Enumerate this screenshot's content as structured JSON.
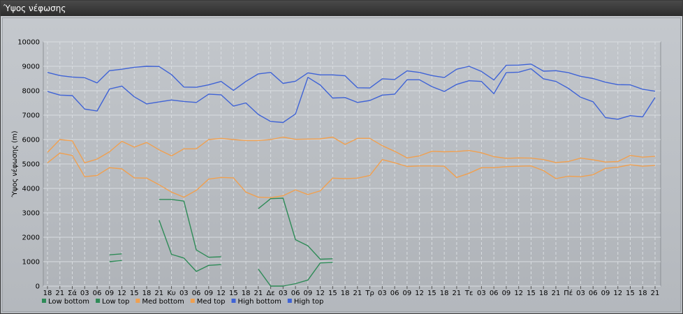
{
  "window": {
    "title": "Ύψος νέφωσης"
  },
  "colors": {
    "low": "#2e8b57",
    "med": "#f0a050",
    "high": "#3f63d6",
    "grid": "#d9dde1",
    "plot_bg": "#b9bdc2"
  },
  "chart_data": {
    "type": "line",
    "title": "",
    "xlabel": "",
    "ylabel": "Ύψος νέφωσης (m)",
    "ylim": [
      0,
      10000
    ],
    "yticks": [
      0,
      1000,
      2000,
      3000,
      4000,
      5000,
      6000,
      7000,
      8000,
      9000,
      10000
    ],
    "grid": true,
    "legend_position": "bottom-left",
    "categories": [
      "18",
      "21",
      "Σά",
      "03",
      "06",
      "09",
      "12",
      "15",
      "18",
      "21",
      "Κυ",
      "03",
      "06",
      "09",
      "12",
      "15",
      "18",
      "21",
      "Δε",
      "03",
      "06",
      "09",
      "12",
      "15",
      "18",
      "21",
      "Τρ",
      "03",
      "06",
      "09",
      "12",
      "15",
      "18",
      "21",
      "Τε",
      "03",
      "06",
      "09",
      "12",
      "15",
      "18",
      "21",
      "Πέ",
      "03",
      "06",
      "09",
      "12",
      "15",
      "18",
      "21"
    ],
    "series": [
      {
        "name": "Low bottom",
        "color_key": "low",
        "values": [
          null,
          null,
          null,
          null,
          null,
          1000,
          1050,
          null,
          null,
          2700,
          1300,
          1150,
          600,
          850,
          880,
          null,
          null,
          700,
          0,
          0,
          100,
          250,
          950,
          970,
          null,
          null,
          null,
          null,
          null,
          null,
          null,
          null,
          null,
          null,
          null,
          null,
          null,
          null,
          null,
          null,
          null,
          null,
          null,
          null,
          null,
          null,
          null,
          null,
          null,
          null
        ]
      },
      {
        "name": "Low top",
        "color_key": "low",
        "values": [
          null,
          null,
          null,
          null,
          null,
          1280,
          1320,
          null,
          null,
          3550,
          3550,
          3480,
          1480,
          1180,
          1200,
          null,
          null,
          3170,
          3580,
          3600,
          1900,
          1650,
          1100,
          1120,
          null,
          null,
          null,
          null,
          null,
          null,
          null,
          null,
          null,
          null,
          null,
          null,
          null,
          null,
          null,
          null,
          null,
          null,
          null,
          null,
          null,
          null,
          null,
          null,
          null,
          null
        ]
      },
      {
        "name": "Med bottom",
        "color_key": "med",
        "values": [
          5050,
          5450,
          5350,
          4480,
          4530,
          4850,
          4800,
          4430,
          4420,
          4150,
          3850,
          3640,
          3920,
          4380,
          4450,
          4430,
          3850,
          3640,
          3620,
          3700,
          3940,
          3750,
          3900,
          4420,
          4400,
          4420,
          4530,
          5180,
          5050,
          4900,
          4920,
          4920,
          4910,
          4450,
          4620,
          4850,
          4850,
          4890,
          4910,
          4920,
          4730,
          4400,
          4500,
          4480,
          4560,
          4820,
          4870,
          4970,
          4910,
          4940
        ]
      },
      {
        "name": "Med top",
        "color_key": "med",
        "values": [
          5480,
          6000,
          5950,
          5050,
          5200,
          5500,
          5930,
          5690,
          5880,
          5580,
          5330,
          5620,
          5620,
          6000,
          6050,
          6000,
          5960,
          5960,
          6000,
          6100,
          6010,
          6020,
          6030,
          6100,
          5800,
          6050,
          6050,
          5750,
          5520,
          5250,
          5330,
          5520,
          5500,
          5510,
          5550,
          5460,
          5300,
          5230,
          5250,
          5240,
          5180,
          5060,
          5100,
          5240,
          5170,
          5080,
          5100,
          5350,
          5280,
          5310
        ]
      },
      {
        "name": "High bottom",
        "color_key": "high",
        "values": [
          7970,
          7820,
          7800,
          7250,
          7170,
          8070,
          8190,
          7750,
          7460,
          7540,
          7620,
          7560,
          7520,
          7860,
          7830,
          7370,
          7500,
          7030,
          6740,
          6700,
          7050,
          8550,
          8230,
          7700,
          7720,
          7520,
          7600,
          7820,
          7860,
          8450,
          8450,
          8170,
          7970,
          8260,
          8410,
          8380,
          7880,
          8740,
          8760,
          8900,
          8490,
          8380,
          8100,
          7730,
          7550,
          6900,
          6830,
          6980,
          6930,
          7720
        ]
      },
      {
        "name": "High top",
        "color_key": "high",
        "values": [
          8750,
          8620,
          8560,
          8530,
          8320,
          8820,
          8880,
          8960,
          9000,
          8990,
          8660,
          8150,
          8140,
          8240,
          8380,
          8010,
          8380,
          8690,
          8750,
          8300,
          8390,
          8730,
          8650,
          8650,
          8610,
          8120,
          8110,
          8490,
          8460,
          8810,
          8750,
          8620,
          8540,
          8880,
          9000,
          8790,
          8440,
          9040,
          9050,
          9090,
          8800,
          8820,
          8740,
          8590,
          8500,
          8350,
          8250,
          8240,
          8060,
          7980
        ]
      }
    ]
  }
}
